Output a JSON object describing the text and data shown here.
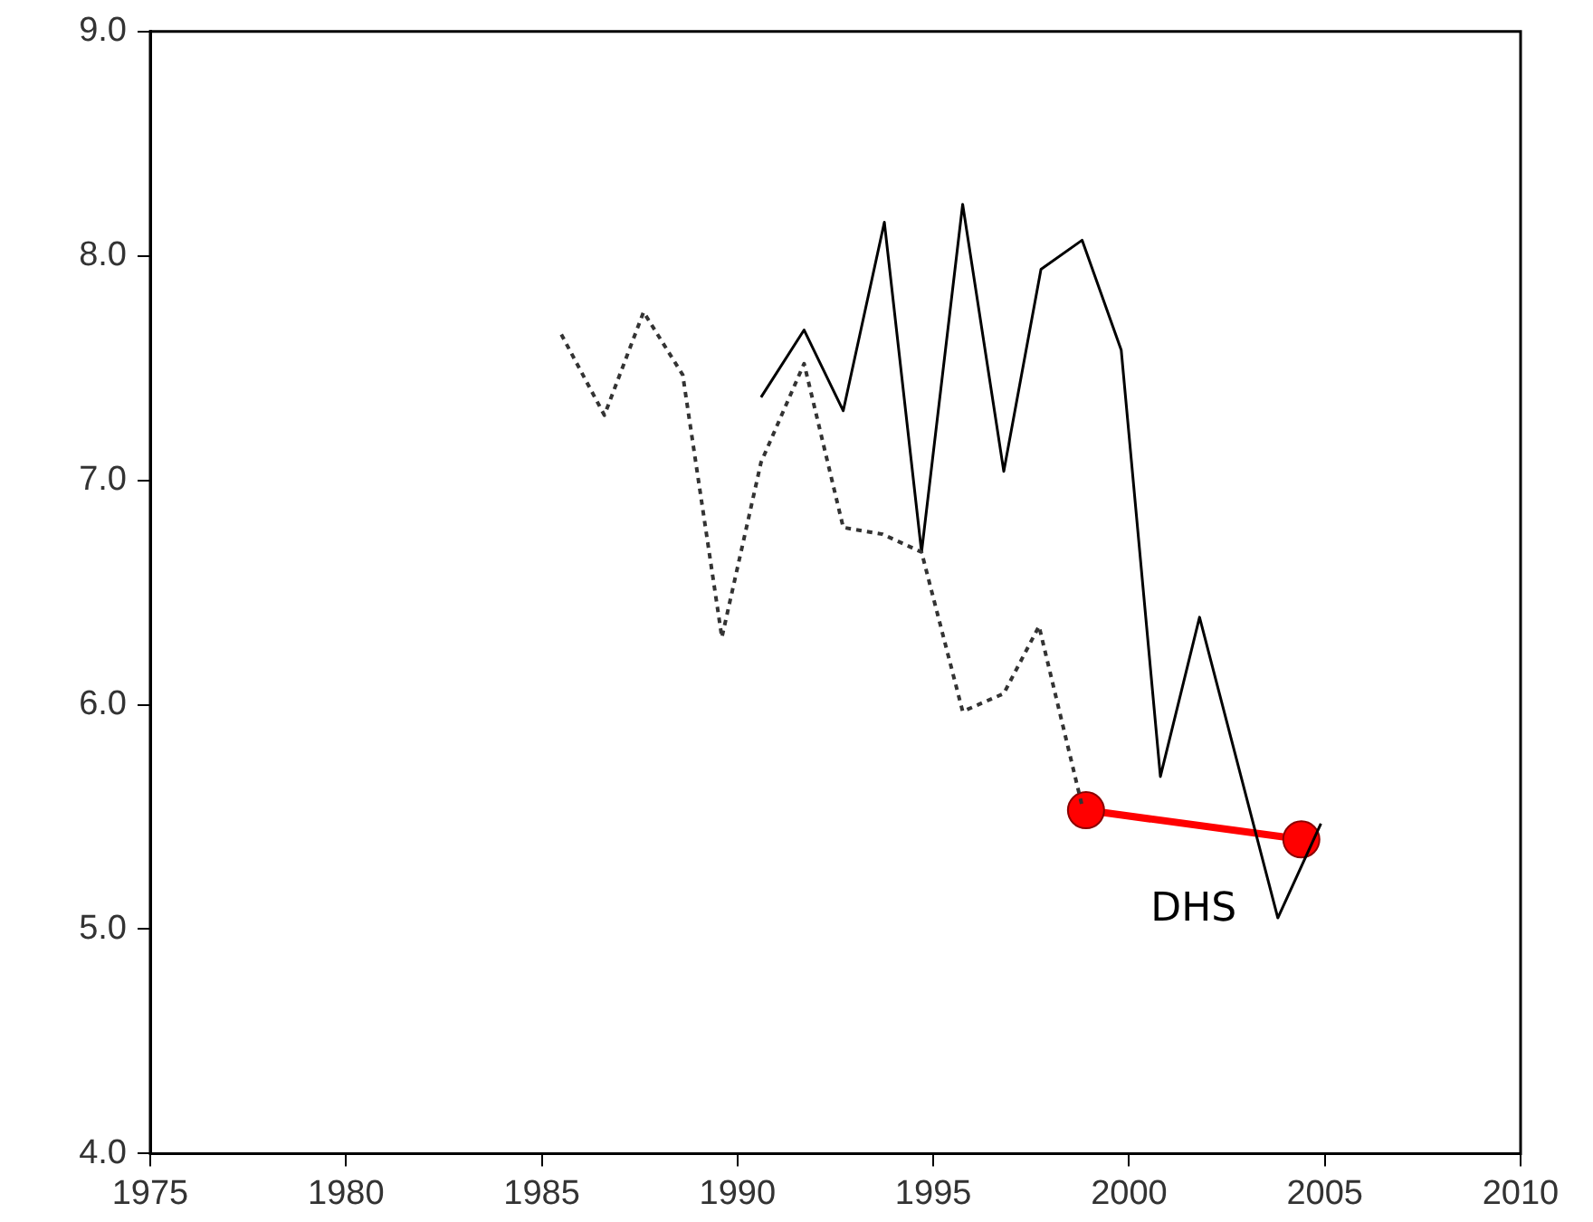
{
  "chart_data": {
    "type": "line",
    "xlim": [
      1975,
      2010
    ],
    "xticks": [
      1975,
      1980,
      1985,
      1990,
      1995,
      2000,
      2005,
      2010
    ],
    "ylim": [
      4,
      9
    ],
    "yticks": [
      {
        "value": 4,
        "label": "4.0"
      },
      {
        "value": 5,
        "label": "5.0"
      },
      {
        "value": 6,
        "label": "6.0"
      },
      {
        "value": 7,
        "label": "7.0"
      },
      {
        "value": 8,
        "label": "8.0"
      },
      {
        "value": 9,
        "label": "9.0"
      }
    ],
    "grid": false,
    "legend": false,
    "series": [
      {
        "color": "#333333",
        "line_style": "dotted",
        "marker": "none",
        "x": [
          1985.5,
          1986.6,
          1987.6,
          1988.6,
          1989.6,
          1990.6,
          1991.7,
          1992.7,
          1993.7,
          1994.7,
          1995.75,
          1996.8,
          1997.7,
          1998.8
        ],
        "values": [
          7.65,
          7.29,
          7.75,
          7.47,
          6.3,
          7.08,
          7.52,
          6.79,
          6.76,
          6.68,
          5.97,
          6.05,
          6.35,
          5.55
        ]
      },
      {
        "color": "#000000",
        "line_style": "solid",
        "marker": "none",
        "x": [
          1990.6,
          1991.7,
          1992.7,
          1993.75,
          1994.7,
          1995.75,
          1996.8,
          1997.75,
          1998.8,
          1999.8,
          2000.8,
          2001.8,
          2003.8,
          2004.9
        ],
        "values": [
          7.37,
          7.67,
          7.31,
          8.15,
          6.68,
          8.23,
          7.04,
          7.94,
          8.07,
          7.58,
          5.68,
          6.39,
          5.05,
          5.47
        ]
      },
      {
        "name": "DHS",
        "color": "#ff0000",
        "line_style": "solid",
        "marker": "circle",
        "x": [
          1998.9,
          2004.4
        ],
        "values": [
          5.53,
          5.4
        ]
      }
    ]
  }
}
